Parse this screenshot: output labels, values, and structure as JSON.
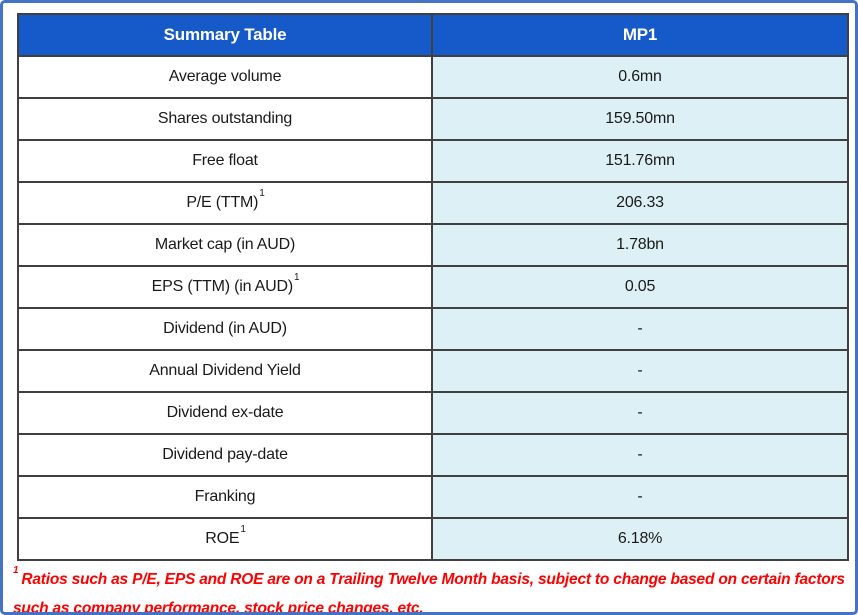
{
  "colors": {
    "header_bg": "#1659C8",
    "header_text": "#FFFFFF",
    "value_cell_bg": "#DDF0F5",
    "table_border": "#404040",
    "outer_border": "#4472C4",
    "footnote_red": "#FF0000"
  },
  "table": {
    "header": {
      "col1": "Summary Table",
      "col2": "MP1"
    },
    "rows": [
      {
        "label": "Average volume",
        "superscript": "",
        "value": "0.6mn"
      },
      {
        "label": "Shares outstanding",
        "superscript": "",
        "value": "159.50mn"
      },
      {
        "label": "Free float",
        "superscript": "",
        "value": "151.76mn"
      },
      {
        "label": "P/E (TTM)",
        "superscript": "1",
        "value": "206.33"
      },
      {
        "label": "Market cap (in AUD)",
        "superscript": "",
        "value": "1.78bn"
      },
      {
        "label": "EPS (TTM) (in AUD)",
        "superscript": "1",
        "value": "0.05"
      },
      {
        "label": "Dividend (in AUD)",
        "superscript": "",
        "value": "-"
      },
      {
        "label": "Annual Dividend Yield",
        "superscript": "",
        "value": "-"
      },
      {
        "label": "Dividend ex-date",
        "superscript": "",
        "value": "-"
      },
      {
        "label": "Dividend pay-date",
        "superscript": "",
        "value": "-"
      },
      {
        "label": "Franking",
        "superscript": "",
        "value": "-"
      },
      {
        "label": "ROE",
        "superscript": "1",
        "value": "6.18%"
      }
    ]
  },
  "footnote": {
    "superscript": "1",
    "text": "Ratios such as P/E, EPS and ROE are on a Trailing Twelve Month basis, subject to change based on certain factors such as company performance, stock price changes, etc."
  }
}
